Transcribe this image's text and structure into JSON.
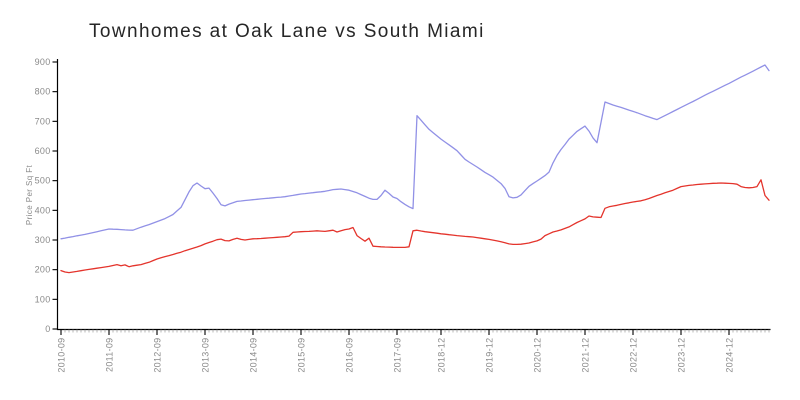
{
  "header": {
    "title": "Townhomes at Oak Lane vs South Miami"
  },
  "axis": {
    "line_color": "#000000",
    "major_tick_color": "#000000",
    "minor_tick_color": "#999999",
    "tick_label_color": "#8a8a8a",
    "title_color": "#262626"
  },
  "chart_data": {
    "type": "line",
    "title": "Townhomes at Oak Lane vs South Miami",
    "xlabel": "",
    "ylabel": "Price Per Sq Ft",
    "ylim": [
      0,
      900
    ],
    "y_ticks": [
      0,
      100,
      200,
      300,
      400,
      500,
      600,
      700,
      800,
      900
    ],
    "grid": false,
    "legend_position": "none",
    "n_points": 178,
    "x_tick_labels": [
      {
        "index": 0,
        "label": "2010-09"
      },
      {
        "index": 12,
        "label": "2011-09"
      },
      {
        "index": 24,
        "label": "2012-09"
      },
      {
        "index": 36,
        "label": "2013-09"
      },
      {
        "index": 48,
        "label": "2014-09"
      },
      {
        "index": 60,
        "label": "2015-09"
      },
      {
        "index": 72,
        "label": "2016-09"
      },
      {
        "index": 84,
        "label": "2017-09"
      },
      {
        "index": 95,
        "label": "2018-12"
      },
      {
        "index": 107,
        "label": "2019-12"
      },
      {
        "index": 119,
        "label": "2020-12"
      },
      {
        "index": 131,
        "label": "2021-12"
      },
      {
        "index": 143,
        "label": "2022-12"
      },
      {
        "index": 155,
        "label": "2023-12"
      },
      {
        "index": 167,
        "label": "2024-12"
      }
    ],
    "series": [
      {
        "name": "blue-line",
        "color": "#9191e6",
        "points": [
          [
            0,
            304
          ],
          [
            2,
            309
          ],
          [
            4,
            314
          ],
          [
            6,
            319
          ],
          [
            8,
            325
          ],
          [
            10,
            331
          ],
          [
            12,
            337
          ],
          [
            14,
            336
          ],
          [
            16,
            334
          ],
          [
            18,
            333
          ],
          [
            20,
            343
          ],
          [
            22,
            352
          ],
          [
            24,
            362
          ],
          [
            26,
            372
          ],
          [
            28,
            386
          ],
          [
            30,
            410
          ],
          [
            32,
            462
          ],
          [
            33,
            483
          ],
          [
            34,
            492
          ],
          [
            35,
            482
          ],
          [
            36,
            473
          ],
          [
            37,
            475
          ],
          [
            38,
            458
          ],
          [
            39,
            440
          ],
          [
            40,
            419
          ],
          [
            41,
            415
          ],
          [
            42,
            421
          ],
          [
            44,
            430
          ],
          [
            48,
            436
          ],
          [
            52,
            441
          ],
          [
            56,
            446
          ],
          [
            60,
            455
          ],
          [
            64,
            461
          ],
          [
            66,
            464
          ],
          [
            68,
            470
          ],
          [
            70,
            472
          ],
          [
            72,
            468
          ],
          [
            74,
            459
          ],
          [
            76,
            447
          ],
          [
            77,
            441
          ],
          [
            78,
            437
          ],
          [
            79,
            437
          ],
          [
            80,
            450
          ],
          [
            81,
            468
          ],
          [
            82,
            457
          ],
          [
            83,
            445
          ],
          [
            84,
            440
          ],
          [
            85,
            429
          ],
          [
            86,
            420
          ],
          [
            87,
            412
          ],
          [
            88,
            406
          ],
          [
            89,
            719
          ],
          [
            92,
            673
          ],
          [
            95,
            640
          ],
          [
            97,
            621
          ],
          [
            99,
            601
          ],
          [
            101,
            572
          ],
          [
            102,
            563
          ],
          [
            104,
            546
          ],
          [
            106,
            528
          ],
          [
            108,
            512
          ],
          [
            110,
            490
          ],
          [
            111,
            474
          ],
          [
            112,
            446
          ],
          [
            113,
            442
          ],
          [
            114,
            444
          ],
          [
            115,
            452
          ],
          [
            117,
            481
          ],
          [
            119,
            499
          ],
          [
            121,
            517
          ],
          [
            122,
            529
          ],
          [
            123,
            560
          ],
          [
            124,
            585
          ],
          [
            125,
            605
          ],
          [
            126,
            622
          ],
          [
            127,
            640
          ],
          [
            129,
            666
          ],
          [
            131,
            684
          ],
          [
            132,
            667
          ],
          [
            133,
            644
          ],
          [
            134,
            628
          ],
          [
            136,
            765
          ],
          [
            138,
            755
          ],
          [
            140,
            747
          ],
          [
            142,
            738
          ],
          [
            144,
            729
          ],
          [
            146,
            719
          ],
          [
            148,
            710
          ],
          [
            149,
            706
          ],
          [
            152,
            726
          ],
          [
            155,
            747
          ],
          [
            158,
            767
          ],
          [
            161,
            788
          ],
          [
            164,
            808
          ],
          [
            167,
            828
          ],
          [
            170,
            849
          ],
          [
            173,
            869
          ],
          [
            175,
            883
          ],
          [
            176,
            890
          ],
          [
            177,
            871
          ]
        ]
      },
      {
        "name": "red-line",
        "color": "#e4342c",
        "points": [
          [
            0,
            197
          ],
          [
            1,
            192
          ],
          [
            2,
            190
          ],
          [
            3,
            192
          ],
          [
            4,
            194
          ],
          [
            6,
            199
          ],
          [
            8,
            203
          ],
          [
            10,
            207
          ],
          [
            12,
            211
          ],
          [
            13,
            214
          ],
          [
            14,
            217
          ],
          [
            15,
            213
          ],
          [
            16,
            216
          ],
          [
            17,
            210
          ],
          [
            18,
            213
          ],
          [
            19,
            215
          ],
          [
            20,
            217
          ],
          [
            22,
            225
          ],
          [
            24,
            236
          ],
          [
            26,
            244
          ],
          [
            28,
            251
          ],
          [
            30,
            259
          ],
          [
            31,
            264
          ],
          [
            33,
            272
          ],
          [
            35,
            281
          ],
          [
            36,
            287
          ],
          [
            38,
            296
          ],
          [
            39,
            301
          ],
          [
            40,
            303
          ],
          [
            41,
            298
          ],
          [
            42,
            297
          ],
          [
            43,
            302
          ],
          [
            44,
            306
          ],
          [
            45,
            302
          ],
          [
            46,
            300
          ],
          [
            48,
            304
          ],
          [
            50,
            305
          ],
          [
            52,
            307
          ],
          [
            54,
            309
          ],
          [
            56,
            311
          ],
          [
            57,
            313
          ],
          [
            58,
            326
          ],
          [
            60,
            328
          ],
          [
            62,
            329
          ],
          [
            64,
            331
          ],
          [
            66,
            329
          ],
          [
            68,
            333
          ],
          [
            69,
            327
          ],
          [
            70,
            331
          ],
          [
            71,
            335
          ],
          [
            72,
            337
          ],
          [
            73,
            342
          ],
          [
            74,
            315
          ],
          [
            75,
            305
          ],
          [
            76,
            296
          ],
          [
            77,
            306
          ],
          [
            78,
            279
          ],
          [
            80,
            277
          ],
          [
            82,
            276
          ],
          [
            84,
            275
          ],
          [
            86,
            275
          ],
          [
            87,
            277
          ],
          [
            88,
            331
          ],
          [
            89,
            333
          ],
          [
            91,
            328
          ],
          [
            94,
            323
          ],
          [
            95,
            321
          ],
          [
            97,
            318
          ],
          [
            99,
            315
          ],
          [
            101,
            312
          ],
          [
            103,
            310
          ],
          [
            105,
            306
          ],
          [
            107,
            302
          ],
          [
            109,
            297
          ],
          [
            111,
            291
          ],
          [
            112,
            287
          ],
          [
            113,
            285
          ],
          [
            114,
            285
          ],
          [
            115,
            286
          ],
          [
            117,
            290
          ],
          [
            119,
            297
          ],
          [
            120,
            303
          ],
          [
            121,
            315
          ],
          [
            123,
            327
          ],
          [
            125,
            334
          ],
          [
            127,
            344
          ],
          [
            129,
            359
          ],
          [
            131,
            371
          ],
          [
            132,
            381
          ],
          [
            133,
            378
          ],
          [
            135,
            376
          ],
          [
            136,
            407
          ],
          [
            137,
            412
          ],
          [
            139,
            417
          ],
          [
            141,
            423
          ],
          [
            143,
            428
          ],
          [
            145,
            432
          ],
          [
            147,
            440
          ],
          [
            149,
            450
          ],
          [
            151,
            459
          ],
          [
            153,
            468
          ],
          [
            155,
            480
          ],
          [
            157,
            484
          ],
          [
            159,
            487
          ],
          [
            161,
            489
          ],
          [
            163,
            491
          ],
          [
            165,
            492
          ],
          [
            168,
            490
          ],
          [
            169,
            488
          ],
          [
            170,
            480
          ],
          [
            171,
            477
          ],
          [
            172,
            476
          ],
          [
            173,
            477
          ],
          [
            174,
            480
          ],
          [
            175,
            503
          ],
          [
            176,
            450
          ],
          [
            177,
            434
          ]
        ]
      }
    ]
  }
}
